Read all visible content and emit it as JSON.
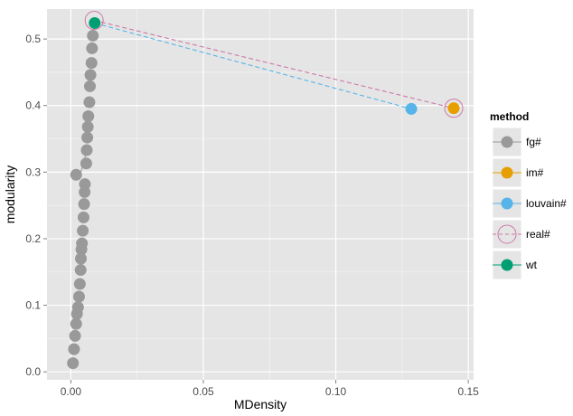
{
  "chart_data": {
    "type": "scatter",
    "xlabel": "MDensity",
    "ylabel": "modularity",
    "xlim": [
      -0.009,
      0.152
    ],
    "ylim": [
      -0.012,
      0.545
    ],
    "x_ticks": [
      0.0,
      0.05,
      0.1,
      0.15
    ],
    "x_tick_labels": [
      "0.00",
      "0.05",
      "0.10",
      "0.15"
    ],
    "y_ticks": [
      0.0,
      0.1,
      0.2,
      0.3,
      0.4,
      0.5
    ],
    "y_tick_labels": [
      "0.0",
      "0.1",
      "0.2",
      "0.3",
      "0.4",
      "0.5"
    ],
    "grid": true,
    "legend": {
      "title": "method",
      "position": "right",
      "entries": [
        {
          "label": "fg#",
          "color": "#999999",
          "marker": "point"
        },
        {
          "label": "im#",
          "color": "#E69F00",
          "marker": "point"
        },
        {
          "label": "louvain#",
          "color": "#56B4E9",
          "marker": "point"
        },
        {
          "label": "real#",
          "color": "#CC79A7",
          "marker": "open-circle-dashed"
        },
        {
          "label": "wt",
          "color": "#009E73",
          "marker": "point"
        }
      ]
    },
    "series": [
      {
        "name": "fg#",
        "color": "#999999",
        "points": [
          {
            "x": 0.0008,
            "y": 0.013
          },
          {
            "x": 0.0012,
            "y": 0.034
          },
          {
            "x": 0.0016,
            "y": 0.054
          },
          {
            "x": 0.002,
            "y": 0.072
          },
          {
            "x": 0.0023,
            "y": 0.087
          },
          {
            "x": 0.0027,
            "y": 0.097
          },
          {
            "x": 0.0031,
            "y": 0.113
          },
          {
            "x": 0.0034,
            "y": 0.132
          },
          {
            "x": 0.0037,
            "y": 0.153
          },
          {
            "x": 0.0038,
            "y": 0.17
          },
          {
            "x": 0.004,
            "y": 0.184
          },
          {
            "x": 0.0042,
            "y": 0.193
          },
          {
            "x": 0.0045,
            "y": 0.212
          },
          {
            "x": 0.0048,
            "y": 0.232
          },
          {
            "x": 0.005,
            "y": 0.252
          },
          {
            "x": 0.0052,
            "y": 0.27
          },
          {
            "x": 0.0053,
            "y": 0.282
          },
          {
            "x": 0.002,
            "y": 0.296
          },
          {
            "x": 0.0058,
            "y": 0.313
          },
          {
            "x": 0.006,
            "y": 0.333
          },
          {
            "x": 0.0062,
            "y": 0.352
          },
          {
            "x": 0.0064,
            "y": 0.368
          },
          {
            "x": 0.0066,
            "y": 0.384
          },
          {
            "x": 0.007,
            "y": 0.405
          },
          {
            "x": 0.0072,
            "y": 0.429
          },
          {
            "x": 0.0074,
            "y": 0.446
          },
          {
            "x": 0.0078,
            "y": 0.464
          },
          {
            "x": 0.008,
            "y": 0.486
          },
          {
            "x": 0.0083,
            "y": 0.505
          }
        ]
      },
      {
        "name": "im#",
        "color": "#E69F00",
        "points": [
          {
            "x": 0.1445,
            "y": 0.396
          }
        ]
      },
      {
        "name": "louvain#",
        "color": "#56B4E9",
        "points": [
          {
            "x": 0.1285,
            "y": 0.395
          }
        ]
      },
      {
        "name": "real#",
        "color": "#CC79A7",
        "points": [
          {
            "x": 0.0088,
            "y": 0.528
          },
          {
            "x": 0.1445,
            "y": 0.396
          }
        ]
      },
      {
        "name": "wt",
        "color": "#009E73",
        "points": [
          {
            "x": 0.009,
            "y": 0.524
          }
        ]
      }
    ],
    "dashed_lines": [
      {
        "color": "#CC79A7",
        "from": {
          "x": 0.0088,
          "y": 0.528
        },
        "to": {
          "x": 0.1445,
          "y": 0.396
        }
      },
      {
        "color": "#56B4E9",
        "from": {
          "x": 0.009,
          "y": 0.524
        },
        "to": {
          "x": 0.1285,
          "y": 0.395
        }
      }
    ],
    "connector_line": {
      "color": "#999999",
      "from": {
        "x": 0.0035,
        "y": 0.296
      },
      "to": {
        "x": 0.0055,
        "y": 0.325
      }
    }
  }
}
